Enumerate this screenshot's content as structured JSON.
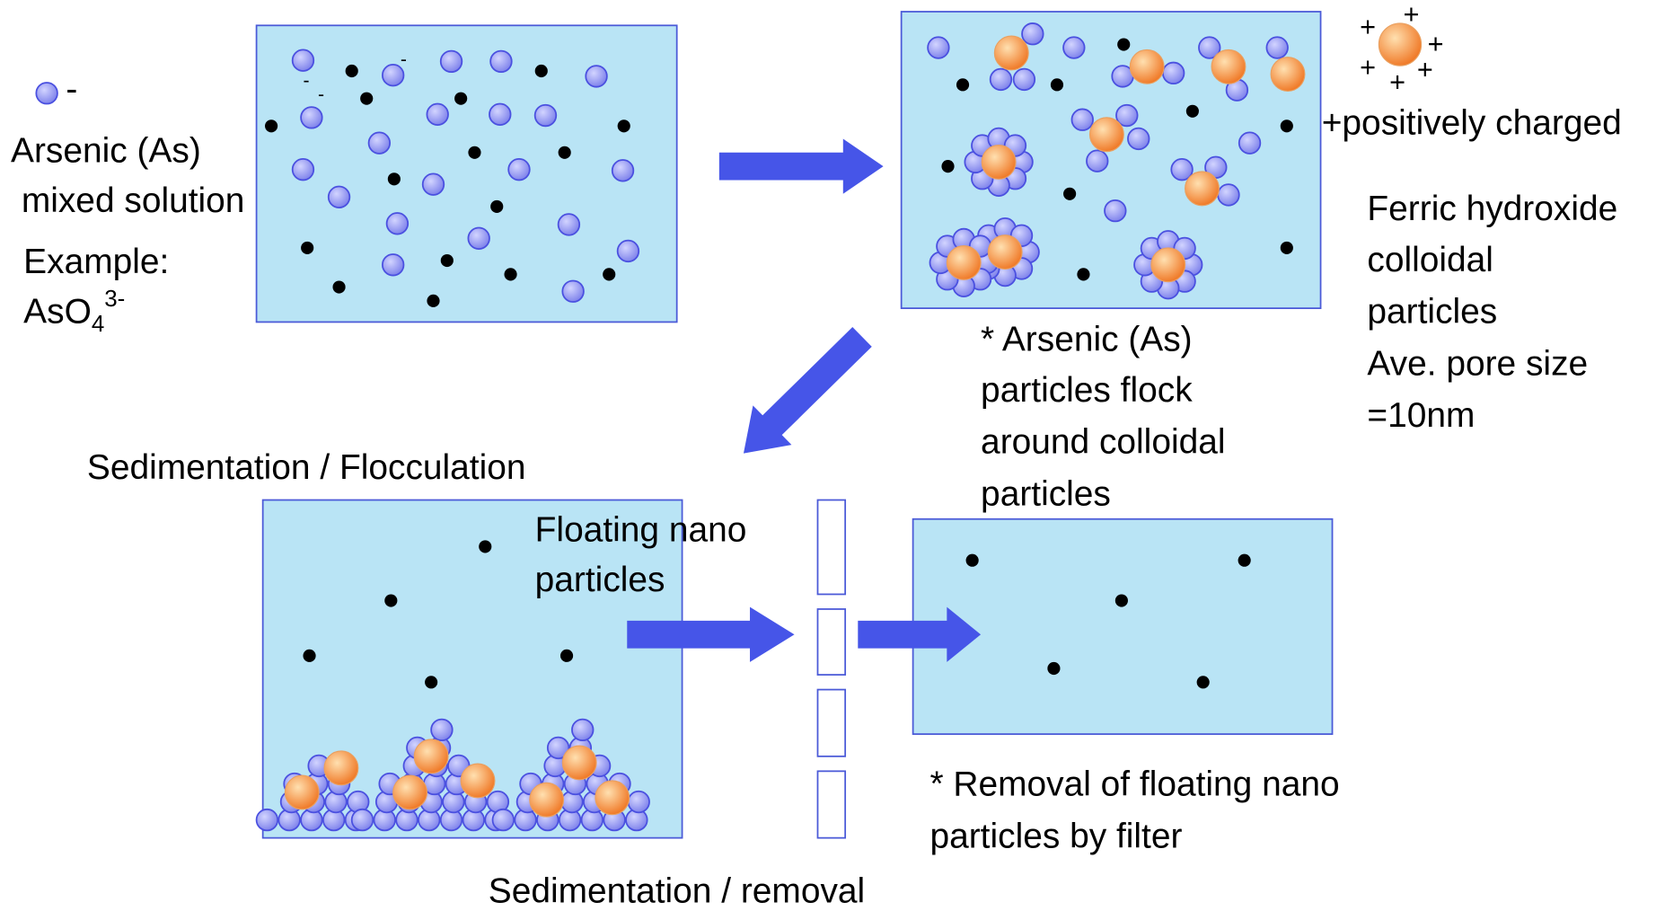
{
  "legend": {
    "charge_minus": "-",
    "charge_plus": "+",
    "label": [
      "Arsenic (As)",
      "mixed solution"
    ],
    "example_label": "Example:",
    "example_formula": {
      "base": "AsO",
      "sub": "4",
      "sup": "3-"
    },
    "colloid_label": "+positively charged",
    "colloid_description": [
      "Ferric hydroxide",
      "colloidal",
      "particles",
      "Ave. pore size",
      "=10nm"
    ]
  },
  "steps": [
    {
      "caption": [
        "* Arsenic (As)",
        "particles flock",
        "around colloidal",
        "particles"
      ]
    },
    {
      "caption": [
        "Sedimentation / Flocculation"
      ]
    },
    {
      "caption": [
        "Floating nano",
        "particles"
      ]
    },
    {
      "caption": [
        "* Removal of floating nano",
        "particles by filter"
      ]
    },
    {
      "caption": [
        "Sedimentation / removal"
      ]
    }
  ]
}
